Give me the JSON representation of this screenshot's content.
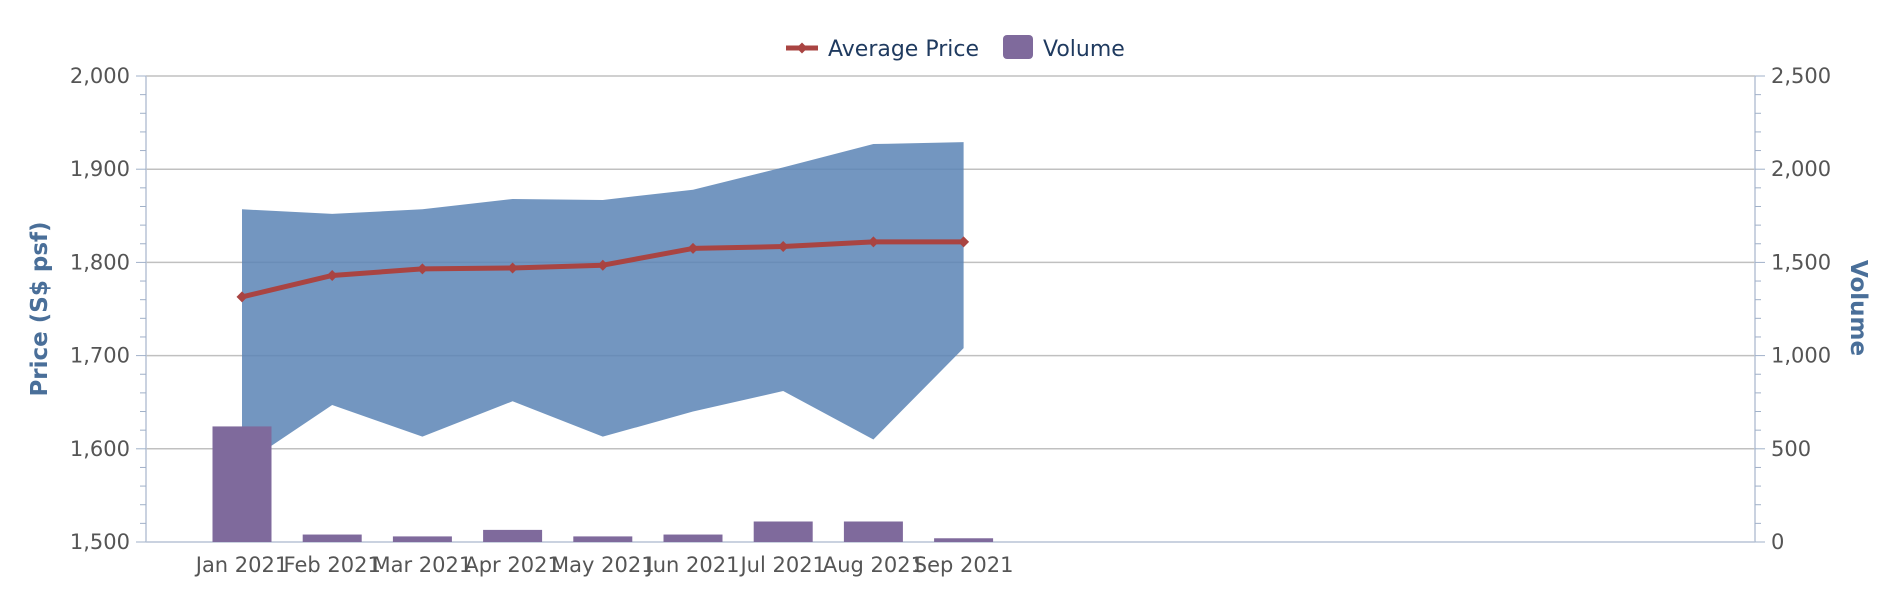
{
  "chart_data": {
    "type": "line",
    "categories": [
      "Jan 2021",
      "Feb 2021",
      "Mar 2021",
      "Apr 2021",
      "May 2021",
      "Jun 2021",
      "Jul 2021",
      "Aug 2021",
      "Sep 2021"
    ],
    "x_dates": [
      "2021-01",
      "2021-02",
      "2021-03",
      "2021-04",
      "2021-05",
      "2021-06",
      "2021-07",
      "2021-08",
      "2021-09"
    ],
    "series": [
      {
        "name": "Average Price",
        "type": "line",
        "axis": "left",
        "color": "#a94442",
        "values": [
          1763,
          1786,
          1793,
          1794,
          1797,
          1815,
          1817,
          1822,
          1822
        ]
      },
      {
        "name": "Volume",
        "type": "bar",
        "axis": "right",
        "color": "#7f6a9c",
        "values": [
          620,
          40,
          30,
          65,
          30,
          40,
          110,
          110,
          20
        ]
      },
      {
        "type": "arearange",
        "axis": "left",
        "color": "#5b84b5",
        "low": [
          1582,
          1647,
          1613,
          1651,
          1613,
          1640,
          1662,
          1610,
          1708
        ],
        "high": [
          1857,
          1852,
          1857,
          1868,
          1867,
          1878,
          1902,
          1927,
          1929
        ]
      }
    ],
    "y_left": {
      "label": "Price (S$ psf)",
      "ylim": [
        1500,
        2000
      ],
      "ticks": [
        "1,500",
        "1,600",
        "1,700",
        "1,800",
        "1,900",
        "2,000"
      ]
    },
    "y_right": {
      "label": "Volume",
      "ylim": [
        0,
        2500
      ],
      "ticks": [
        "0",
        "500",
        "1,000",
        "1,500",
        "2,000",
        "2,500"
      ]
    },
    "grid": true,
    "legend": {
      "position": "top-center",
      "items": [
        {
          "label": "Average Price",
          "color": "#a94442",
          "shape": "line"
        },
        {
          "label": "Volume",
          "color": "#7f6a9c",
          "shape": "box"
        }
      ]
    }
  }
}
